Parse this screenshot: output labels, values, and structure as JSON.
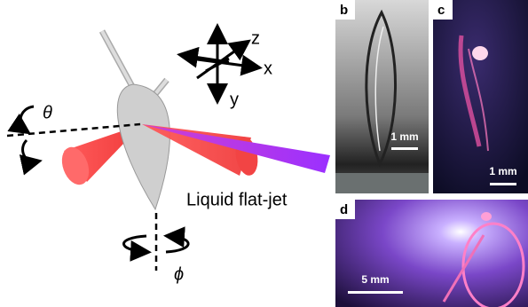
{
  "diagram": {
    "axes": [
      "z",
      "x",
      "y"
    ],
    "angles": [
      "θ",
      "ϕ"
    ],
    "label": "Liquid flat-jet"
  },
  "panels": [
    {
      "letter": "b",
      "scale": "1 mm"
    },
    {
      "letter": "c",
      "scale": "1 mm"
    },
    {
      "letter": "d",
      "scale": "5 mm"
    }
  ]
}
